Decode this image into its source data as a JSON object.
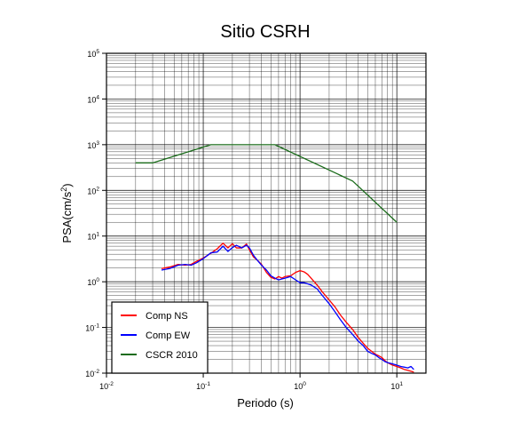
{
  "chart_data": {
    "type": "line",
    "title": "Sitio CSRH",
    "xlabel": "Periodo (s)",
    "ylabel_base": "PSA(cm/s",
    "ylabel_exp": "2",
    "ylabel_close": ")",
    "xscale": "log",
    "yscale": "log",
    "xlim": [
      0.01,
      20
    ],
    "ylim": [
      0.01,
      100000
    ],
    "grid": true,
    "legend_position": "bottom-left",
    "x_ticks": [
      {
        "base": "10",
        "exp": "-2",
        "value": 0.01
      },
      {
        "base": "10",
        "exp": "-1",
        "value": 0.1
      },
      {
        "base": "10",
        "exp": "0",
        "value": 1
      },
      {
        "base": "10",
        "exp": "1",
        "value": 10
      }
    ],
    "y_ticks": [
      {
        "base": "10",
        "exp": "-2",
        "value": 0.01
      },
      {
        "base": "10",
        "exp": "-1",
        "value": 0.1
      },
      {
        "base": "10",
        "exp": "0",
        "value": 1
      },
      {
        "base": "10",
        "exp": "1",
        "value": 10
      },
      {
        "base": "10",
        "exp": "2",
        "value": 100
      },
      {
        "base": "10",
        "exp": "3",
        "value": 1000
      },
      {
        "base": "10",
        "exp": "4",
        "value": 10000
      },
      {
        "base": "10",
        "exp": "5",
        "value": 100000
      }
    ],
    "series": [
      {
        "name": "Comp NS",
        "color": "#ff0000",
        "x": [
          0.037,
          0.045,
          0.055,
          0.065,
          0.075,
          0.085,
          0.1,
          0.12,
          0.14,
          0.16,
          0.18,
          0.2,
          0.22,
          0.25,
          0.28,
          0.3,
          0.33,
          0.36,
          0.4,
          0.45,
          0.5,
          0.55,
          0.6,
          0.65,
          0.7,
          0.8,
          0.9,
          1.0,
          1.1,
          1.2,
          1.3,
          1.5,
          1.7,
          2.0,
          2.3,
          2.6,
          3.0,
          3.5,
          4.0,
          4.5,
          5.0,
          5.5,
          6.0,
          6.5,
          7.0,
          7.5,
          8.0,
          9.0,
          10.0,
          11.0,
          12.0,
          13.0,
          14.0,
          15.0
        ],
        "values": [
          1.95,
          2.1,
          2.4,
          2.3,
          2.4,
          2.8,
          3.3,
          4.2,
          5.3,
          7.0,
          5.5,
          6.8,
          5.5,
          5.5,
          6.7,
          5.0,
          3.5,
          3.0,
          2.4,
          1.6,
          1.25,
          1.15,
          1.3,
          1.2,
          1.3,
          1.35,
          1.6,
          1.75,
          1.65,
          1.45,
          1.2,
          0.85,
          0.6,
          0.4,
          0.28,
          0.19,
          0.13,
          0.09,
          0.06,
          0.045,
          0.035,
          0.03,
          0.026,
          0.024,
          0.022,
          0.019,
          0.017,
          0.015,
          0.014,
          0.013,
          0.012,
          0.0115,
          0.011,
          0.0105
        ]
      },
      {
        "name": "Comp EW",
        "color": "#0000ff",
        "x": [
          0.037,
          0.045,
          0.055,
          0.065,
          0.075,
          0.085,
          0.1,
          0.12,
          0.14,
          0.16,
          0.18,
          0.2,
          0.22,
          0.25,
          0.28,
          0.3,
          0.33,
          0.36,
          0.4,
          0.45,
          0.5,
          0.55,
          0.6,
          0.65,
          0.7,
          0.8,
          0.9,
          1.0,
          1.1,
          1.2,
          1.3,
          1.5,
          1.7,
          2.0,
          2.3,
          2.6,
          3.0,
          3.5,
          4.0,
          4.5,
          5.0,
          5.5,
          6.0,
          6.5,
          7.0,
          7.5,
          8.0,
          9.0,
          10.0,
          11.0,
          12.0,
          13.0,
          14.0,
          15.0
        ],
        "values": [
          1.8,
          1.95,
          2.3,
          2.4,
          2.3,
          2.6,
          3.2,
          4.3,
          4.5,
          6.0,
          4.6,
          5.6,
          6.3,
          5.5,
          6.3,
          5.5,
          3.8,
          3.0,
          2.3,
          1.8,
          1.35,
          1.2,
          1.1,
          1.15,
          1.2,
          1.3,
          1.1,
          0.95,
          0.95,
          0.9,
          0.85,
          0.7,
          0.5,
          0.33,
          0.22,
          0.15,
          0.1,
          0.07,
          0.05,
          0.04,
          0.03,
          0.027,
          0.025,
          0.022,
          0.02,
          0.018,
          0.017,
          0.016,
          0.015,
          0.014,
          0.0135,
          0.013,
          0.014,
          0.012
        ]
      },
      {
        "name": "CSCR 2010",
        "color": "#1a6b1a",
        "x": [
          0.02,
          0.03,
          0.12,
          0.55,
          3.5,
          10.0
        ],
        "values": [
          400,
          400,
          1000,
          1000,
          160,
          20
        ]
      }
    ]
  }
}
